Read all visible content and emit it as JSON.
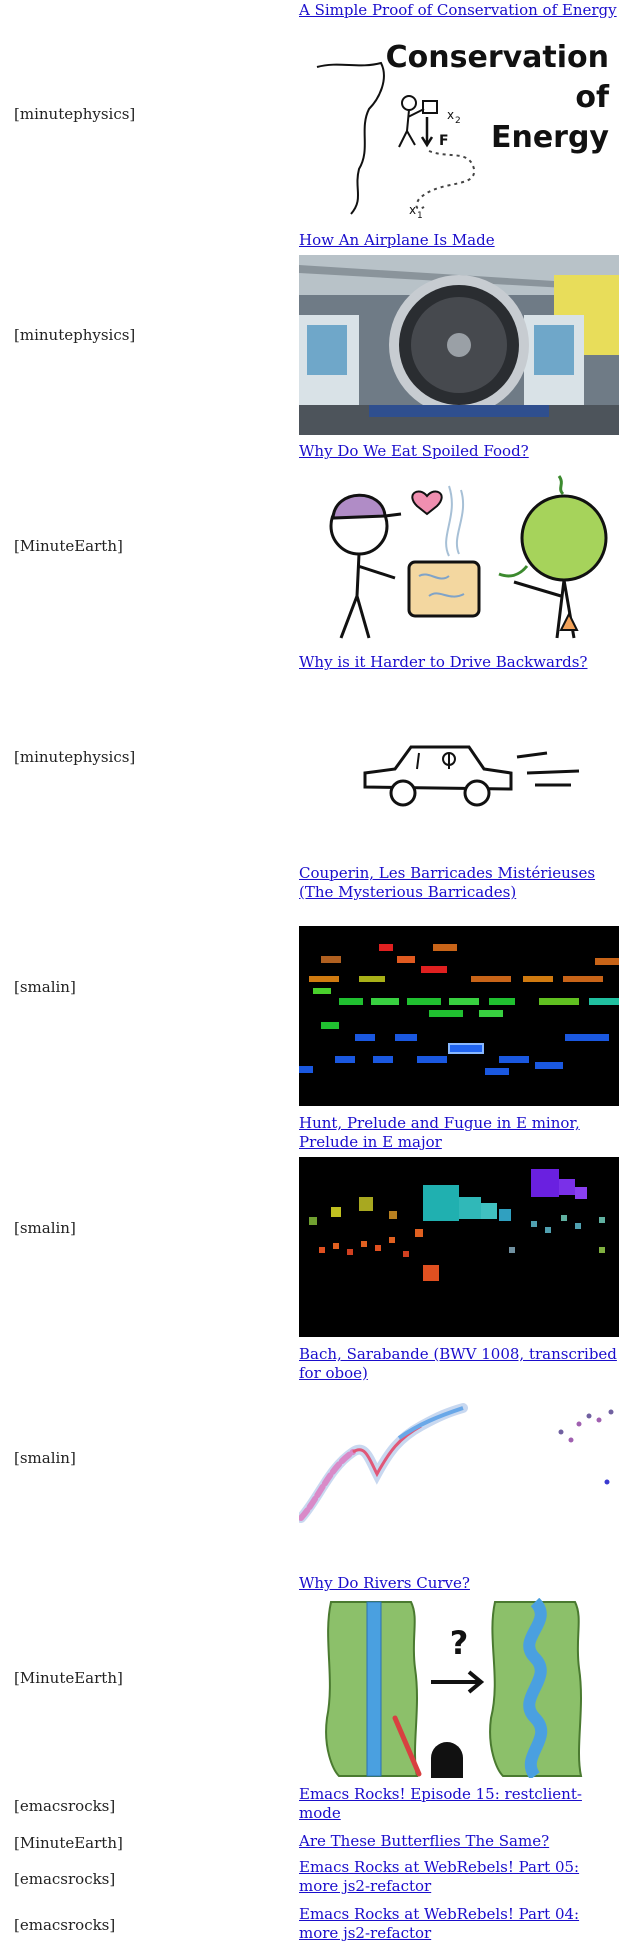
{
  "items": [
    {
      "channel": "[minutephysics]",
      "title": "A Simple Proof of Conservation of Energy",
      "thumb_text": [
        "Conservation",
        "of",
        "Energy"
      ]
    },
    {
      "channel": "[minutephysics]",
      "title": "How An Airplane Is Made"
    },
    {
      "channel": "[MinuteEarth]",
      "title": "Why Do We Eat Spoiled Food?"
    },
    {
      "channel": "[minutephysics]",
      "title": "Why is it Harder to Drive Backwards?"
    },
    {
      "channel": "[smalin]",
      "title": "Couperin, Les Barricades Mistérieuses (The Mysterious Barricades)"
    },
    {
      "channel": "[smalin]",
      "title": "Hunt, Prelude and Fugue in E minor, Prelude in E major"
    },
    {
      "channel": "[smalin]",
      "title": "Bach, Sarabande (BWV 1008, transcribed for oboe)"
    },
    {
      "channel": "[MinuteEarth]",
      "title": "Why Do Rivers Curve?"
    },
    {
      "channel": "[emacsrocks]",
      "title": "Emacs Rocks! Episode 15: restclient-mode"
    },
    {
      "channel": "[MinuteEarth]",
      "title": "Are These Butterflies The Same?"
    },
    {
      "channel": "[emacsrocks]",
      "title": "Emacs Rocks at WebRebels! Part 05: more js2-refactor"
    },
    {
      "channel": "[emacsrocks]",
      "title": "Emacs Rocks at WebRebels! Part 04: more js2-refactor"
    }
  ]
}
